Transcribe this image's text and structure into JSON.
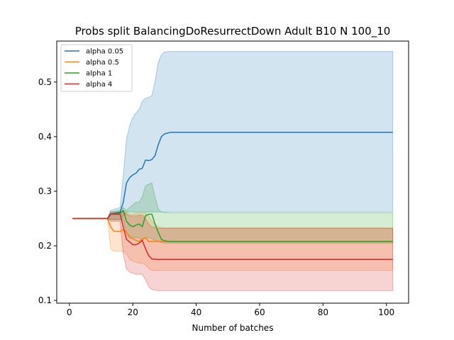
{
  "chart_data": {
    "type": "line",
    "title": "Probs split BalancingDoResurrectDown Adult B10 N 100_10",
    "xlabel": "Number of batches",
    "ylabel": "",
    "xlim": [
      -4,
      107
    ],
    "ylim": [
      0.095,
      0.575
    ],
    "x_ticks": [
      0,
      20,
      40,
      60,
      80,
      100
    ],
    "y_ticks": [
      0.1,
      0.2,
      0.3,
      0.4,
      0.5
    ],
    "grid": false,
    "legend_position": "top-left",
    "series": [
      {
        "name": "alpha 0.05",
        "color": "#1f77b4",
        "band_opacity": 0.2,
        "points": [
          [
            1,
            0.25,
            0.25,
            0.25
          ],
          [
            12,
            0.25,
            0.25,
            0.25
          ],
          [
            13,
            0.258,
            0.248,
            0.265
          ],
          [
            16,
            0.262,
            0.248,
            0.27
          ],
          [
            17,
            0.28,
            0.255,
            0.33
          ],
          [
            18,
            0.315,
            0.262,
            0.395
          ],
          [
            19,
            0.325,
            0.262,
            0.42
          ],
          [
            20,
            0.33,
            0.262,
            0.435
          ],
          [
            21,
            0.333,
            0.262,
            0.443
          ],
          [
            22,
            0.34,
            0.262,
            0.45
          ],
          [
            23,
            0.342,
            0.262,
            0.465
          ],
          [
            24,
            0.357,
            0.262,
            0.47
          ],
          [
            25,
            0.356,
            0.262,
            0.472
          ],
          [
            26,
            0.358,
            0.262,
            0.475
          ],
          [
            27,
            0.365,
            0.262,
            0.5
          ],
          [
            28,
            0.385,
            0.262,
            0.535
          ],
          [
            29,
            0.4,
            0.262,
            0.55
          ],
          [
            30,
            0.405,
            0.262,
            0.555
          ],
          [
            32,
            0.408,
            0.262,
            0.556
          ],
          [
            102,
            0.408,
            0.262,
            0.556
          ]
        ]
      },
      {
        "name": "alpha 0.5",
        "color": "#ff7f0e",
        "band_opacity": 0.2,
        "points": [
          [
            1,
            0.25,
            0.25,
            0.25
          ],
          [
            12,
            0.25,
            0.25,
            0.25
          ],
          [
            13,
            0.235,
            0.195,
            0.26
          ],
          [
            14,
            0.227,
            0.19,
            0.26
          ],
          [
            16,
            0.226,
            0.19,
            0.262
          ],
          [
            17,
            0.23,
            0.19,
            0.265
          ],
          [
            18,
            0.225,
            0.185,
            0.262
          ],
          [
            19,
            0.215,
            0.175,
            0.258
          ],
          [
            20,
            0.213,
            0.172,
            0.258
          ],
          [
            21,
            0.21,
            0.17,
            0.26
          ],
          [
            22,
            0.208,
            0.168,
            0.26
          ],
          [
            23,
            0.212,
            0.168,
            0.26
          ],
          [
            24,
            0.215,
            0.165,
            0.26
          ],
          [
            25,
            0.208,
            0.158,
            0.255
          ],
          [
            26,
            0.208,
            0.155,
            0.245
          ],
          [
            28,
            0.208,
            0.155,
            0.235
          ],
          [
            30,
            0.208,
            0.155,
            0.233
          ],
          [
            102,
            0.208,
            0.155,
            0.233
          ]
        ]
      },
      {
        "name": "alpha 1",
        "color": "#2ca02c",
        "band_opacity": 0.2,
        "points": [
          [
            1,
            0.25,
            0.25,
            0.25
          ],
          [
            12,
            0.25,
            0.25,
            0.25
          ],
          [
            13,
            0.258,
            0.248,
            0.262
          ],
          [
            16,
            0.26,
            0.248,
            0.265
          ],
          [
            17,
            0.265,
            0.248,
            0.27
          ],
          [
            18,
            0.245,
            0.225,
            0.265
          ],
          [
            19,
            0.238,
            0.218,
            0.27
          ],
          [
            20,
            0.235,
            0.215,
            0.275
          ],
          [
            21,
            0.238,
            0.215,
            0.28
          ],
          [
            22,
            0.24,
            0.215,
            0.28
          ],
          [
            23,
            0.235,
            0.21,
            0.29
          ],
          [
            24,
            0.255,
            0.215,
            0.31
          ],
          [
            25,
            0.258,
            0.215,
            0.313
          ],
          [
            26,
            0.258,
            0.213,
            0.315
          ],
          [
            27,
            0.24,
            0.21,
            0.29
          ],
          [
            28,
            0.225,
            0.208,
            0.268
          ],
          [
            29,
            0.212,
            0.206,
            0.262
          ],
          [
            30,
            0.209,
            0.205,
            0.261
          ],
          [
            32,
            0.208,
            0.205,
            0.26
          ],
          [
            102,
            0.208,
            0.205,
            0.26
          ]
        ]
      },
      {
        "name": "alpha 4",
        "color": "#d62728",
        "band_opacity": 0.2,
        "points": [
          [
            1,
            0.25,
            0.25,
            0.25
          ],
          [
            12,
            0.25,
            0.25,
            0.25
          ],
          [
            13,
            0.258,
            0.245,
            0.262
          ],
          [
            16,
            0.258,
            0.245,
            0.262
          ],
          [
            17,
            0.235,
            0.185,
            0.262
          ],
          [
            18,
            0.212,
            0.158,
            0.258
          ],
          [
            19,
            0.207,
            0.152,
            0.255
          ],
          [
            20,
            0.202,
            0.15,
            0.255
          ],
          [
            21,
            0.202,
            0.148,
            0.255
          ],
          [
            22,
            0.205,
            0.148,
            0.256
          ],
          [
            23,
            0.21,
            0.148,
            0.256
          ],
          [
            24,
            0.195,
            0.138,
            0.25
          ],
          [
            25,
            0.182,
            0.125,
            0.24
          ],
          [
            26,
            0.176,
            0.12,
            0.235
          ],
          [
            28,
            0.175,
            0.118,
            0.232
          ],
          [
            102,
            0.175,
            0.118,
            0.232
          ]
        ]
      }
    ]
  }
}
